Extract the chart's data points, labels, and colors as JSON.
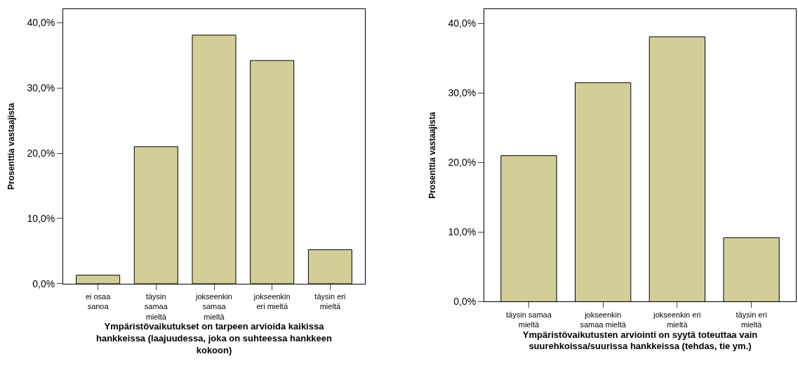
{
  "chart_data": [
    {
      "type": "bar",
      "xlabel": "Ympäristövaikutukset on tarpeen arvioida kaikissa hankkeissa (laajuudessa, joka on suhteessa hankkeen kokoon)",
      "ylabel": "Prosenttia vastaajista",
      "categories": [
        "ei osaa sanoa",
        "täysin samaa mieltä",
        "jokseenkin samaa mieltä",
        "jokseenkin eri mieltä",
        "täysin eri mieltä"
      ],
      "values": [
        1.3,
        21.0,
        38.1,
        34.2,
        5.2
      ],
      "color": "#d3ce97",
      "ylim": [
        0,
        42.1
      ],
      "yticks": [
        {
          "value": 0,
          "label": "0,0%"
        },
        {
          "value": 10,
          "label": "10,0%"
        },
        {
          "value": 20,
          "label": "20,0%"
        },
        {
          "value": 30,
          "label": "30,0%"
        },
        {
          "value": 40,
          "label": "40,0%"
        }
      ]
    },
    {
      "type": "bar",
      "xlabel": "Ympäristövaikutusten arviointi on syytä toteuttaa vain suurehkoissa/suurissa hankkeissa (tehdas, tie ym.)",
      "ylabel": "Prosenttia vastaajista",
      "categories": [
        "täysin samaa mieltä",
        "jokseenkin samaa mieltä",
        "jokseenkin eri mieltä",
        "täysin eri mieltä"
      ],
      "values": [
        21.0,
        31.5,
        38.1,
        9.2
      ],
      "color": "#d3ce97",
      "ylim": [
        0,
        42.1
      ],
      "yticks": [
        {
          "value": 0,
          "label": "0,0%"
        },
        {
          "value": 10,
          "label": "10,0%"
        },
        {
          "value": 20,
          "label": "20,0%"
        },
        {
          "value": 30,
          "label": "30,0%"
        },
        {
          "value": 40,
          "label": "40,0%"
        }
      ]
    }
  ]
}
